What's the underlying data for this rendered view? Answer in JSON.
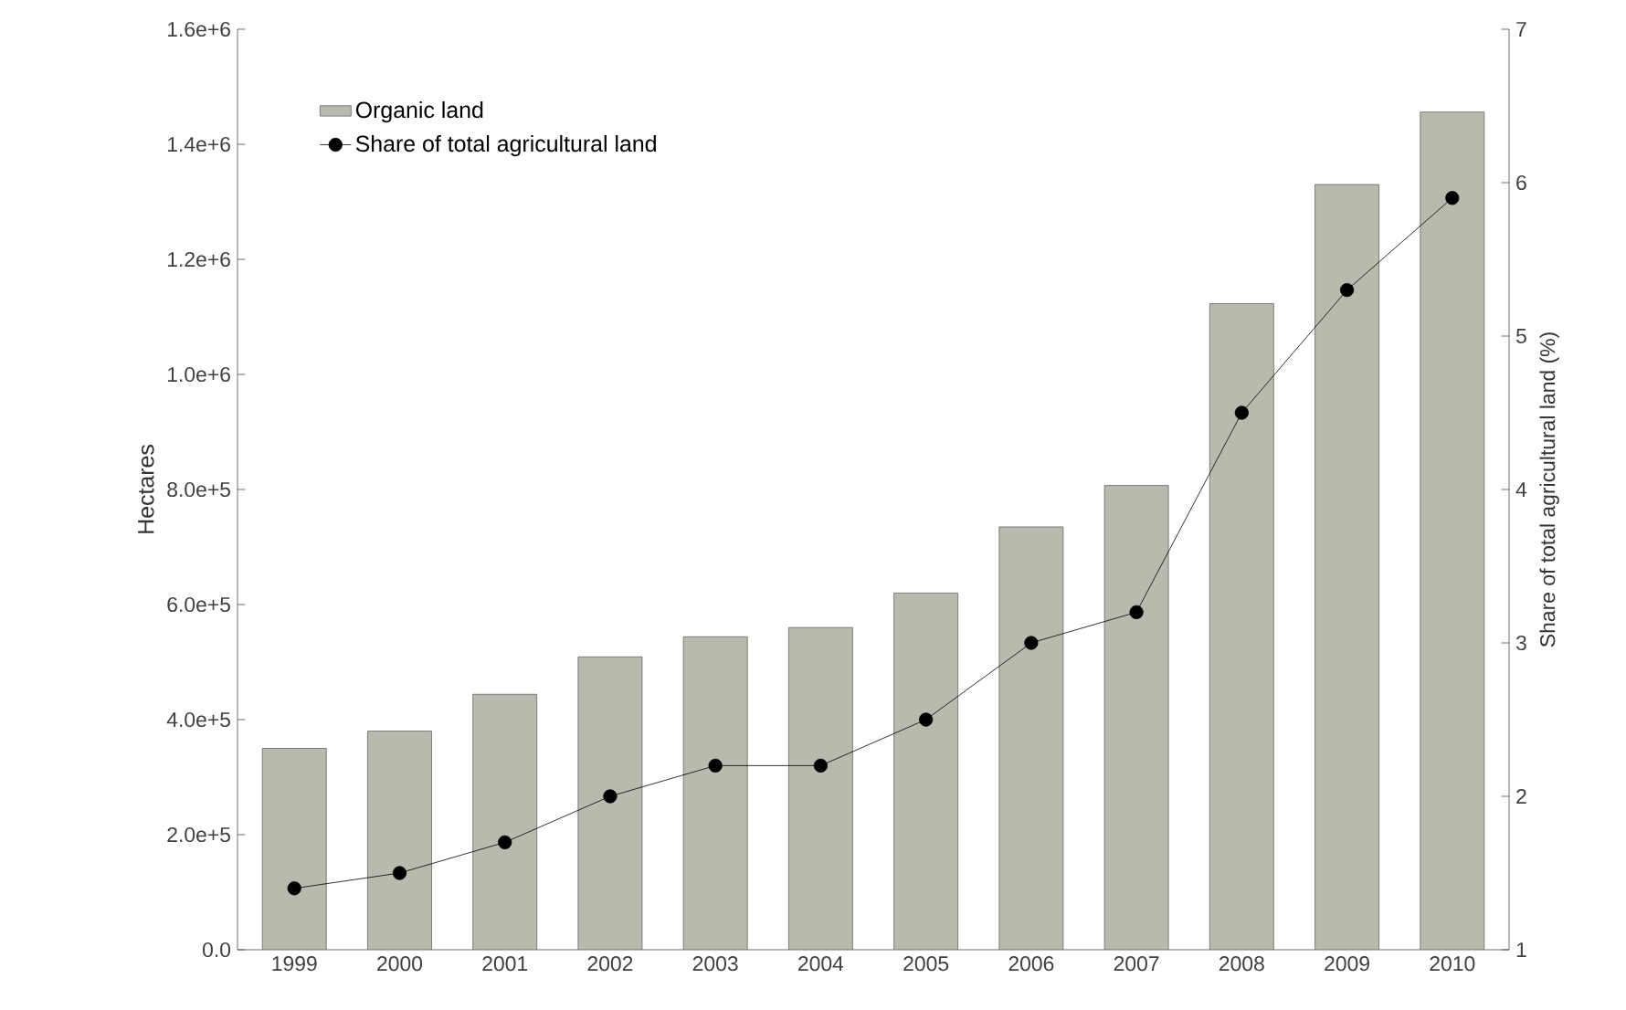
{
  "chart_data": {
    "type": "bar",
    "categories": [
      "1999",
      "2000",
      "2001",
      "2002",
      "2003",
      "2004",
      "2005",
      "2006",
      "2007",
      "2008",
      "2009",
      "2010"
    ],
    "ylabel": "Hectares",
    "y2label": "Share of total agricultural land (%)",
    "series": [
      {
        "name": "Organic land",
        "color": "#b9b9ad",
        "values": [
          350000,
          380000,
          444000,
          509000,
          544000,
          560000,
          620000,
          735000,
          807000,
          1123000,
          1330000,
          1456000
        ]
      },
      {
        "name": "Share of total agricultural land",
        "type": "line",
        "axis": "y2",
        "color": "#000000",
        "marker": "circle",
        "line_style": "solid",
        "values": [
          1.4,
          1.5,
          1.7,
          2.0,
          2.2,
          2.2,
          2.5,
          3.0,
          3.2,
          4.5,
          5.3,
          5.9
        ]
      }
    ],
    "ylim": [
      0,
      1600000
    ],
    "yticks": [
      {
        "value": 0,
        "label": "0.0"
      },
      {
        "value": 200000,
        "label": "2.0e+5"
      },
      {
        "value": 400000,
        "label": "4.0e+5"
      },
      {
        "value": 600000,
        "label": "6.0e+5"
      },
      {
        "value": 800000,
        "label": "8.0e+5"
      },
      {
        "value": 1000000,
        "label": "1.0e+6"
      },
      {
        "value": 1200000,
        "label": "1.2e+6"
      },
      {
        "value": 1400000,
        "label": "1.4e+6"
      },
      {
        "value": 1600000,
        "label": "1.6e+6"
      }
    ],
    "y2lim": [
      1,
      7
    ],
    "y2ticks": [
      1,
      2,
      3,
      4,
      5,
      6,
      7
    ],
    "legend": "top left",
    "grid": false
  }
}
